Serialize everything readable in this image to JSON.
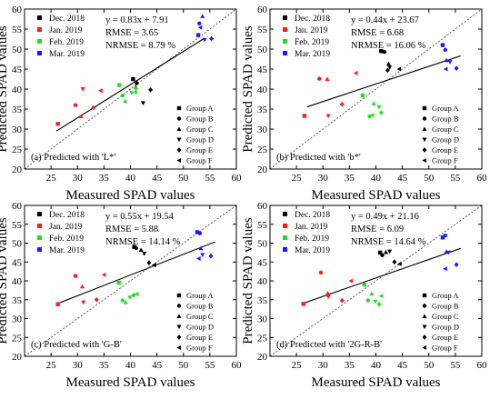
{
  "chart_data": [
    {
      "type": "scatter",
      "xlabel": "Measured SPAD values",
      "ylabel": "Predicted SPAD values",
      "xlim": [
        20,
        60
      ],
      "ylim": [
        20,
        60
      ],
      "xticks": [
        25,
        30,
        35,
        40,
        45,
        50,
        55,
        60
      ],
      "yticks": [
        20,
        25,
        30,
        35,
        40,
        45,
        50,
        55,
        60
      ],
      "caption": "(a) Predicted with 'L*'",
      "stats": [
        "y = 0.83x + 7.91",
        "RMSE = 3.65",
        "NRMSE = 8.79 %"
      ],
      "fit": {
        "slope": 0.83,
        "intercept": 7.91,
        "x_range": [
          26,
          54
        ]
      },
      "series": [
        {
          "name": "Dec. 2018",
          "color": "#000000",
          "points": [
            [
              40.5,
              42.5
            ],
            [
              41.2,
              41.5
            ],
            [
              41.0,
              40.5
            ],
            [
              42.4,
              36.5
            ],
            [
              43.8,
              39.8
            ]
          ]
        },
        {
          "name": "Jan. 2019",
          "color": "#ff1a1a",
          "points": [
            [
              26.3,
              31.3
            ],
            [
              29.6,
              36.0
            ],
            [
              30.7,
              33.2
            ],
            [
              31.0,
              40.0
            ],
            [
              33.0,
              35.3
            ],
            [
              34.4,
              39.6
            ]
          ]
        },
        {
          "name": "Feb. 2019",
          "color": "#22dd22",
          "points": [
            [
              37.9,
              41.0
            ],
            [
              38.5,
              38.4
            ],
            [
              39.0,
              37.0
            ],
            [
              40.2,
              39.0
            ],
            [
              41.0,
              40.2
            ],
            [
              40.9,
              39.2
            ]
          ]
        },
        {
          "name": "Mar. 2019",
          "color": "#1a1aff",
          "points": [
            [
              52.8,
              53.5
            ],
            [
              53.0,
              56.4
            ],
            [
              53.6,
              58.2
            ],
            [
              54.0,
              52.3
            ],
            [
              55.3,
              52.6
            ],
            [
              53.2,
              55.4
            ]
          ]
        }
      ]
    },
    {
      "type": "scatter",
      "xlabel": "Measured SPAD values",
      "ylabel": "Predicted SPAD values",
      "xlim": [
        20,
        60
      ],
      "ylim": [
        20,
        60
      ],
      "xticks": [
        25,
        30,
        35,
        40,
        45,
        50,
        55,
        60
      ],
      "yticks": [
        20,
        25,
        30,
        35,
        40,
        45,
        50,
        55,
        60
      ],
      "caption": "(b) Predicted with 'b*'",
      "stats": [
        "y = 0.44x + 23.67",
        "RMSE = 6.68",
        "NRMSE = 16.06 %"
      ],
      "fit": {
        "slope": 0.44,
        "intercept": 23.67,
        "x_range": [
          27,
          56
        ]
      },
      "series": [
        {
          "name": "Dec. 2018",
          "color": "#000000",
          "points": [
            [
              41.0,
              49.5
            ],
            [
              41.6,
              49.3
            ],
            [
              42.4,
              46.3
            ],
            [
              42.6,
              45.4
            ],
            [
              42.2,
              44.7
            ],
            [
              44.4,
              45.0
            ]
          ]
        },
        {
          "name": "Jan. 2019",
          "color": "#ff1a1a",
          "points": [
            [
              26.5,
              33.3
            ],
            [
              29.3,
              42.6
            ],
            [
              30.8,
              42.5
            ],
            [
              31.0,
              33.3
            ],
            [
              33.6,
              36.2
            ],
            [
              36.2,
              44.0
            ]
          ]
        },
        {
          "name": "Feb. 2019",
          "color": "#22dd22",
          "points": [
            [
              37.5,
              38.4
            ],
            [
              38.8,
              33.2
            ],
            [
              39.6,
              36.4
            ],
            [
              40.6,
              35.5
            ],
            [
              41.0,
              34.1
            ],
            [
              39.3,
              33.5
            ]
          ]
        },
        {
          "name": "Mar. 2019",
          "color": "#1a1aff",
          "points": [
            [
              52.6,
              51.0
            ],
            [
              53.1,
              49.8
            ],
            [
              53.3,
              47.2
            ],
            [
              54.0,
              46.8
            ],
            [
              55.2,
              45.2
            ],
            [
              53.2,
              45.0
            ]
          ]
        }
      ]
    },
    {
      "type": "scatter",
      "xlabel": "Measured SPAD values",
      "ylabel": "Predicted SPAD values",
      "xlim": [
        20,
        60
      ],
      "ylim": [
        20,
        60
      ],
      "xticks": [
        25,
        30,
        35,
        40,
        45,
        50,
        55,
        60
      ],
      "yticks": [
        20,
        25,
        30,
        35,
        40,
        45,
        50,
        55,
        60
      ],
      "caption": "(c) Predicted with 'G-B'",
      "stats": [
        "y = 0.55x + 19.54",
        "RMSE = 5.88",
        "NRMSE = 14.14 %"
      ],
      "fit": {
        "slope": 0.55,
        "intercept": 19.54,
        "x_range": [
          26,
          56
        ]
      },
      "series": [
        {
          "name": "Dec. 2018",
          "color": "#000000",
          "points": [
            [
              40.7,
              49.0
            ],
            [
              41.1,
              48.7
            ],
            [
              42.0,
              48.2
            ],
            [
              42.6,
              47.2
            ],
            [
              43.5,
              44.8
            ],
            [
              44.5,
              44.2
            ]
          ]
        },
        {
          "name": "Jan. 2019",
          "color": "#ff1a1a",
          "points": [
            [
              26.3,
              33.8
            ],
            [
              29.6,
              41.3
            ],
            [
              30.9,
              38.5
            ],
            [
              31.1,
              34.3
            ],
            [
              33.6,
              35.0
            ],
            [
              35.0,
              41.6
            ]
          ]
        },
        {
          "name": "Feb. 2019",
          "color": "#22dd22",
          "points": [
            [
              37.8,
              39.5
            ],
            [
              38.5,
              34.8
            ],
            [
              39.1,
              34.3
            ],
            [
              39.9,
              35.6
            ],
            [
              40.6,
              36.2
            ],
            [
              41.2,
              36.5
            ]
          ]
        },
        {
          "name": "Mar. 2019",
          "color": "#1a1aff",
          "points": [
            [
              52.6,
              52.9
            ],
            [
              53.1,
              52.6
            ],
            [
              53.3,
              48.6
            ],
            [
              53.6,
              46.9
            ],
            [
              55.2,
              46.6
            ],
            [
              52.9,
              45.9
            ]
          ]
        }
      ]
    },
    {
      "type": "scatter",
      "xlabel": "Measured SPAD values",
      "ylabel": "Predicted SPAD values",
      "xlim": [
        20,
        60
      ],
      "ylim": [
        20,
        60
      ],
      "xticks": [
        25,
        30,
        35,
        40,
        45,
        50,
        55,
        60
      ],
      "yticks": [
        20,
        25,
        30,
        35,
        40,
        45,
        50,
        55,
        60
      ],
      "caption": "(d) Predicted with '2G-R-B'",
      "stats": [
        "y = 0.49x + 21.16",
        "RMSE = 6.09",
        "NRMSE = 14.64 %"
      ],
      "fit": {
        "slope": 0.49,
        "intercept": 21.16,
        "x_range": [
          26,
          56
        ]
      },
      "series": [
        {
          "name": "Dec. 2018",
          "color": "#000000",
          "points": [
            [
              40.8,
              47.5
            ],
            [
              41.2,
              46.8
            ],
            [
              41.9,
              47.6
            ],
            [
              42.6,
              47.8
            ],
            [
              43.5,
              45.0
            ],
            [
              44.5,
              44.5
            ]
          ]
        },
        {
          "name": "Jan. 2019",
          "color": "#ff1a1a",
          "points": [
            [
              26.3,
              33.9
            ],
            [
              29.6,
              42.2
            ],
            [
              30.9,
              36.7
            ],
            [
              31.0,
              35.8
            ],
            [
              33.6,
              34.8
            ],
            [
              35.3,
              40.0
            ]
          ]
        },
        {
          "name": "Feb. 2019",
          "color": "#22dd22",
          "points": [
            [
              37.8,
              39.0
            ],
            [
              38.5,
              34.8
            ],
            [
              39.2,
              36.6
            ],
            [
              39.9,
              34.5
            ],
            [
              40.6,
              33.8
            ],
            [
              41.0,
              36.0
            ]
          ]
        },
        {
          "name": "Mar. 2019",
          "color": "#1a1aff",
          "points": [
            [
              52.6,
              51.5
            ],
            [
              53.1,
              52.0
            ],
            [
              53.3,
              47.7
            ],
            [
              53.7,
              47.5
            ],
            [
              55.2,
              44.3
            ],
            [
              53.1,
              43.2
            ]
          ]
        }
      ]
    }
  ],
  "groups": [
    {
      "name": "Group A",
      "marker": "square"
    },
    {
      "name": "Group B",
      "marker": "circle"
    },
    {
      "name": "Group C",
      "marker": "triangle-up"
    },
    {
      "name": "Group D",
      "marker": "triangle-down"
    },
    {
      "name": "Group E",
      "marker": "diamond"
    },
    {
      "name": "Group F",
      "marker": "triangle-left"
    }
  ]
}
